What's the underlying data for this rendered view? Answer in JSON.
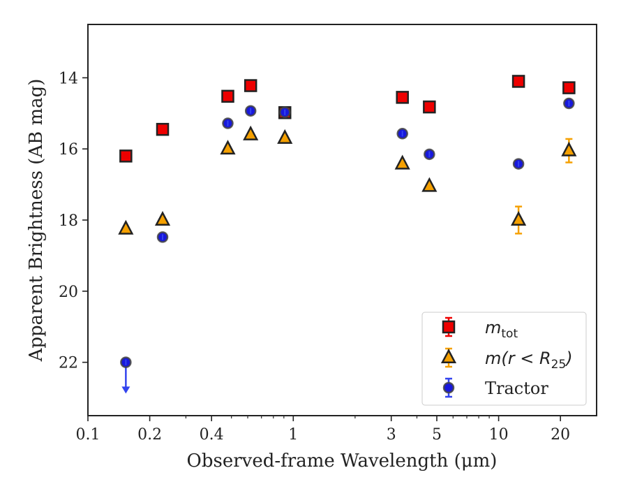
{
  "chart_data": {
    "type": "scatter",
    "title": "",
    "xlabel": "Observed-frame Wavelength (μm)",
    "ylabel": "Apparent Brightness (AB mag)",
    "x_scale": "log",
    "xlim": [
      0.1,
      30
    ],
    "ylim": [
      23.5,
      12.5
    ],
    "y_inverted": true,
    "x_ticks": [
      {
        "value": 0.1,
        "label": "0.1"
      },
      {
        "value": 0.2,
        "label": "0.2"
      },
      {
        "value": 0.4,
        "label": "0.4"
      },
      {
        "value": 1,
        "label": "1"
      },
      {
        "value": 3,
        "label": "3"
      },
      {
        "value": 5,
        "label": "5"
      },
      {
        "value": 10,
        "label": "10"
      },
      {
        "value": 20,
        "label": "20"
      }
    ],
    "y_ticks": [
      {
        "value": 14,
        "label": "14"
      },
      {
        "value": 16,
        "label": "16"
      },
      {
        "value": 18,
        "label": "18"
      },
      {
        "value": 20,
        "label": "20"
      },
      {
        "value": 22,
        "label": "22"
      }
    ],
    "grid": false,
    "legend_position": "lower-right",
    "series": [
      {
        "name": "m_tot",
        "marker": "square",
        "color": "#ee0000",
        "points": [
          {
            "x": 0.153,
            "y": 16.2
          },
          {
            "x": 0.231,
            "y": 15.45
          },
          {
            "x": 0.48,
            "y": 14.52
          },
          {
            "x": 0.62,
            "y": 14.22
          },
          {
            "x": 0.91,
            "y": 14.98
          },
          {
            "x": 3.4,
            "y": 14.55
          },
          {
            "x": 4.6,
            "y": 14.82
          },
          {
            "x": 12.5,
            "y": 14.1
          },
          {
            "x": 22.0,
            "y": 14.28
          }
        ]
      },
      {
        "name": "m(r<R25)",
        "marker": "triangle",
        "color": "#f5a000",
        "points": [
          {
            "x": 0.153,
            "y": 18.25
          },
          {
            "x": 0.231,
            "y": 18.0
          },
          {
            "x": 0.48,
            "y": 16.0
          },
          {
            "x": 0.62,
            "y": 15.6
          },
          {
            "x": 0.91,
            "y": 15.7
          },
          {
            "x": 3.4,
            "y": 16.42
          },
          {
            "x": 4.6,
            "y": 17.05
          },
          {
            "x": 12.5,
            "y": 18.0,
            "err": 0.38
          },
          {
            "x": 22.0,
            "y": 16.05,
            "err": 0.33
          }
        ]
      },
      {
        "name": "Tractor",
        "marker": "circle",
        "color": "#1818dd",
        "points": [
          {
            "x": 0.153,
            "y": 22.0,
            "upper_limit": true
          },
          {
            "x": 0.231,
            "y": 18.48
          },
          {
            "x": 0.48,
            "y": 15.28
          },
          {
            "x": 0.62,
            "y": 14.93
          },
          {
            "x": 0.91,
            "y": 14.97
          },
          {
            "x": 3.4,
            "y": 15.57
          },
          {
            "x": 4.6,
            "y": 16.15
          },
          {
            "x": 12.5,
            "y": 16.42
          },
          {
            "x": 22.0,
            "y": 14.72
          }
        ]
      }
    ]
  },
  "legend": {
    "items": [
      {
        "base": "m",
        "sub": "tot",
        "rest": ""
      },
      {
        "base": "m(r < R",
        "sub": "25",
        "rest": ")"
      },
      {
        "base": "Tractor",
        "sub": "",
        "rest": ""
      }
    ]
  }
}
